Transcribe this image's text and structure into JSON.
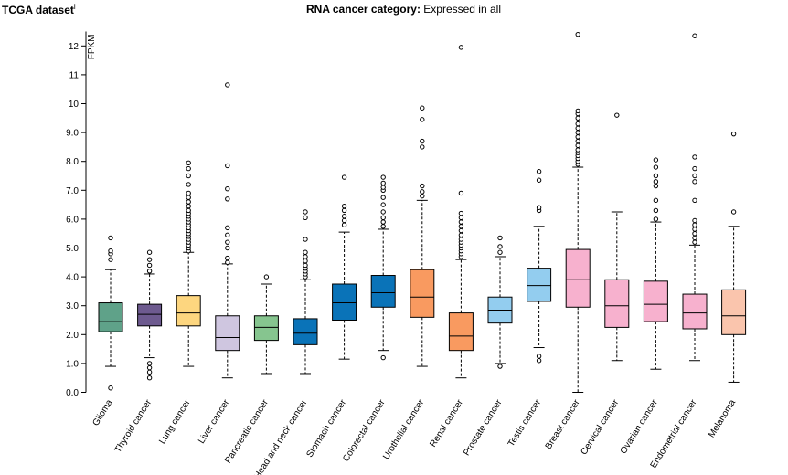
{
  "header": {
    "dataset": "TCGA dataset",
    "info": "i",
    "category_label": "RNA cancer category:",
    "category_value": "Expressed in all"
  },
  "chart_data": {
    "type": "box",
    "ylabel": "FPKM",
    "ylim": [
      0,
      12.5
    ],
    "yticks": [
      0.0,
      1.0,
      2.0,
      3.0,
      4.0,
      5.0,
      6.0,
      7.0,
      8.0,
      9.0,
      10,
      11,
      12
    ],
    "ytick_labels": [
      "0.0",
      "1.0",
      "2.0",
      "3.0",
      "4.0",
      "5.0",
      "6.0",
      "7.0",
      "8.0",
      "9.0",
      "10",
      "11",
      "12"
    ],
    "categories": [
      "Glioma",
      "Thyroid cancer",
      "Lung cancer",
      "Liver cancer",
      "Pancreatic cancer",
      "Head and neck cancer",
      "Stomach cancer",
      "Colorectal cancer",
      "Urothelial cancer",
      "Renal cancer",
      "Prostate cancer",
      "Testis cancer",
      "Breast cancer",
      "Cervical cancer",
      "Ovarian cancer",
      "Endometrial cancer",
      "Melanoma"
    ],
    "colors": [
      "#5fa289",
      "#6d5a8f",
      "#fdd67f",
      "#cfc6e0",
      "#86c58f",
      "#0a73b8",
      "#0a73b8",
      "#0a73b8",
      "#f99a60",
      "#f99a60",
      "#93cdef",
      "#93cdef",
      "#f7b1ce",
      "#f7b1ce",
      "#f7b1ce",
      "#f7b1ce",
      "#fac5ad"
    ],
    "boxes": [
      {
        "min": 0.9,
        "q1": 2.1,
        "median": 2.45,
        "q3": 3.1,
        "max": 4.25,
        "outliers": [
          0.15,
          4.6,
          4.8,
          4.9,
          5.35
        ]
      },
      {
        "min": 1.2,
        "q1": 2.3,
        "median": 2.7,
        "q3": 3.05,
        "max": 4.1,
        "outliers": [
          0.5,
          0.7,
          0.85,
          1.0,
          4.2,
          4.4,
          4.6,
          4.85
        ]
      },
      {
        "min": 0.9,
        "q1": 2.3,
        "median": 2.75,
        "q3": 3.35,
        "max": 4.85,
        "outliers": [
          4.9,
          5.0,
          5.1,
          5.2,
          5.3,
          5.4,
          5.5,
          5.6,
          5.7,
          5.8,
          5.9,
          6.0,
          6.1,
          6.2,
          6.3,
          6.45,
          6.6,
          6.75,
          6.9,
          7.2,
          7.5,
          7.75,
          7.95
        ]
      },
      {
        "min": 0.5,
        "q1": 1.45,
        "median": 1.9,
        "q3": 2.65,
        "max": 4.45,
        "outliers": [
          4.5,
          4.65,
          5.0,
          5.2,
          5.45,
          5.7,
          6.7,
          7.05,
          7.85,
          10.65
        ]
      },
      {
        "min": 0.65,
        "q1": 1.8,
        "median": 2.25,
        "q3": 2.65,
        "max": 3.75,
        "outliers": [
          4.0
        ]
      },
      {
        "min": 0.65,
        "q1": 1.65,
        "median": 2.05,
        "q3": 2.55,
        "max": 3.9,
        "outliers": [
          4.0,
          4.1,
          4.2,
          4.3,
          4.4,
          4.55,
          4.7,
          4.85,
          5.3,
          6.05,
          6.25
        ]
      },
      {
        "min": 1.15,
        "q1": 2.5,
        "median": 3.1,
        "q3": 3.75,
        "max": 5.55,
        "outliers": [
          5.8,
          5.95,
          6.1,
          6.3,
          6.45,
          7.45
        ]
      },
      {
        "min": 1.45,
        "q1": 2.95,
        "median": 3.45,
        "q3": 4.05,
        "max": 5.65,
        "outliers": [
          1.2,
          5.75,
          5.9,
          6.05,
          6.25,
          6.5,
          6.75,
          7.0,
          7.1,
          7.25,
          7.45
        ]
      },
      {
        "min": 0.9,
        "q1": 2.6,
        "median": 3.3,
        "q3": 4.25,
        "max": 6.65,
        "outliers": [
          6.8,
          6.95,
          7.15,
          8.5,
          8.7,
          9.45,
          9.85
        ]
      },
      {
        "min": 0.5,
        "q1": 1.45,
        "median": 1.95,
        "q3": 2.75,
        "max": 4.6,
        "outliers": [
          4.7,
          4.8,
          4.9,
          5.0,
          5.1,
          5.2,
          5.3,
          5.45,
          5.6,
          5.75,
          5.9,
          6.05,
          6.2,
          6.9,
          11.95
        ]
      },
      {
        "min": 1.0,
        "q1": 2.4,
        "median": 2.85,
        "q3": 3.3,
        "max": 4.7,
        "outliers": [
          0.9,
          4.85,
          5.05,
          5.35
        ]
      },
      {
        "min": 1.55,
        "q1": 3.15,
        "median": 3.7,
        "q3": 4.3,
        "max": 5.75,
        "outliers": [
          1.1,
          1.25,
          6.3,
          6.4,
          7.35,
          7.65
        ]
      },
      {
        "min": 0.0,
        "q1": 2.95,
        "median": 3.9,
        "q3": 4.95,
        "max": 7.8,
        "outliers": [
          7.9,
          8.0,
          8.1,
          8.2,
          8.3,
          8.4,
          8.55,
          8.7,
          8.85,
          9.0,
          9.15,
          9.3,
          9.5,
          9.65,
          9.75,
          12.4
        ]
      },
      {
        "min": 1.1,
        "q1": 2.25,
        "median": 3.0,
        "q3": 3.9,
        "max": 6.25,
        "outliers": [
          9.6
        ]
      },
      {
        "min": 0.8,
        "q1": 2.45,
        "median": 3.05,
        "q3": 3.85,
        "max": 5.9,
        "outliers": [
          6.0,
          6.3,
          6.65,
          7.15,
          7.3,
          7.5,
          7.8,
          8.05
        ]
      },
      {
        "min": 1.1,
        "q1": 2.2,
        "median": 2.75,
        "q3": 3.4,
        "max": 5.1,
        "outliers": [
          5.2,
          5.35,
          5.5,
          5.65,
          5.8,
          5.95,
          6.65,
          7.3,
          7.5,
          7.75,
          8.15,
          12.35
        ]
      },
      {
        "min": 0.35,
        "q1": 2.0,
        "median": 2.65,
        "q3": 3.55,
        "max": 5.75,
        "outliers": [
          6.25,
          8.95
        ]
      }
    ]
  }
}
